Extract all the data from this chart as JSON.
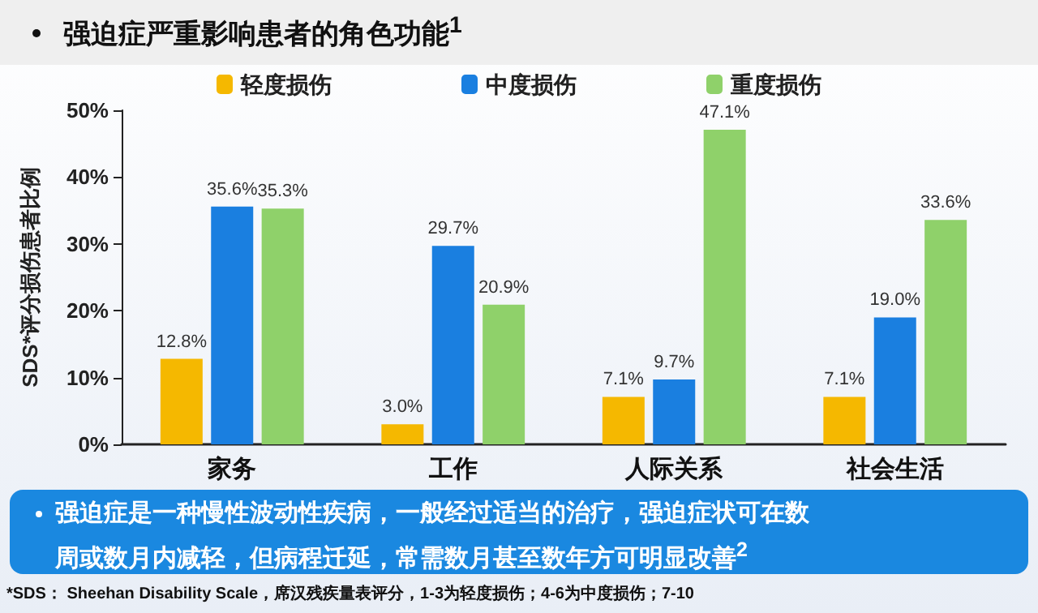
{
  "chart_data": {
    "type": "bar",
    "title": "强迫症严重影响患者的角色功能$^{1}$",
    "ylabel": "SDS*评分损伤患者比例",
    "categories": [
      "家务",
      "工作",
      "人际关系",
      "社会生活"
    ],
    "series": [
      {
        "name": "轻度损伤",
        "color": "#f5b800",
        "values": [
          12.8,
          3.0,
          7.1,
          7.1
        ],
        "value_labels": [
          "12.8%",
          "3.0%",
          "7.1%",
          "7.1%"
        ]
      },
      {
        "name": "中度损伤",
        "color": "#1a7fe0",
        "values": [
          35.6,
          29.7,
          9.7,
          19.0
        ],
        "value_labels": [
          "35.6%",
          "29.7%",
          "9.7%",
          "19.0%"
        ]
      },
      {
        "name": "重度损伤",
        "color": "#8fd16a",
        "values": [
          35.3,
          20.9,
          47.1,
          33.6
        ],
        "value_labels": [
          "35.3%",
          "20.9%",
          "47.1%",
          "33.6%"
        ]
      }
    ],
    "ylim": [
      0,
      50
    ],
    "yticks": [
      {
        "value": 0,
        "label": "0%"
      },
      {
        "value": 10,
        "label": "10%"
      },
      {
        "value": 20,
        "label": "20%"
      },
      {
        "value": 30,
        "label": "30%"
      },
      {
        "value": 40,
        "label": "40%"
      },
      {
        "value": 50,
        "label": "50%"
      }
    ],
    "grid": false,
    "legend": "top",
    "annotations": [
      "强迫症是一种慢性波动性疾病，一般经过适当的治疗，强迫症状可在数周或数月内减轻，但病程迁延，常需数月甚至数年方可明显改善$^{2}$",
      "*SDS： Sheehan Disability Scale，席汉残疾量表评分，1-3为轻度损伤；4-6为中度损伤；7-10"
    ]
  }
}
